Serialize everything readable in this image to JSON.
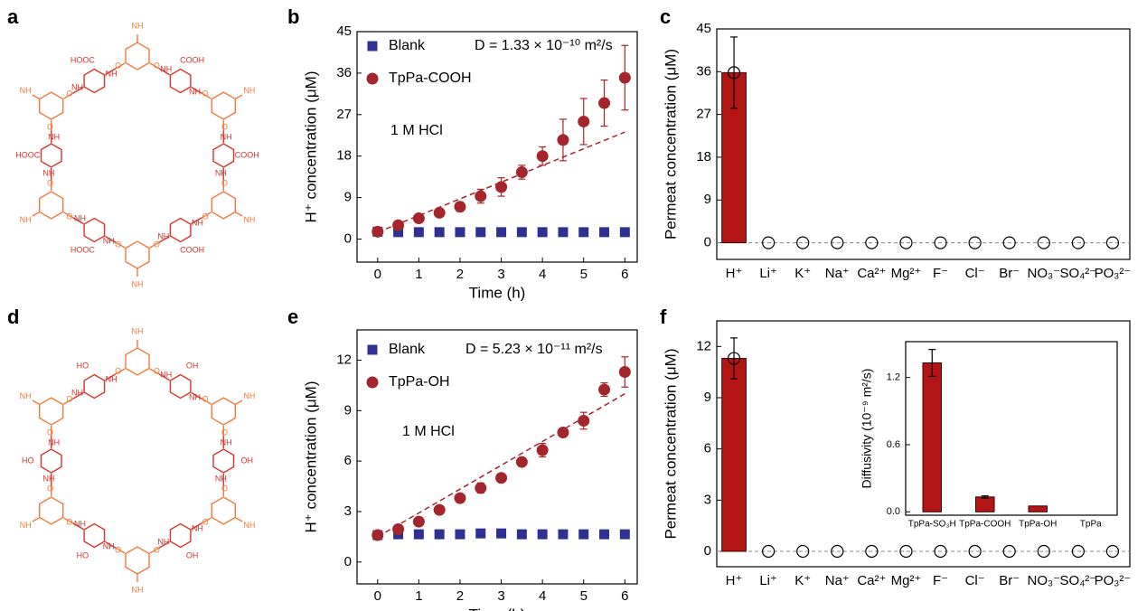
{
  "panel_labels": [
    "a",
    "b",
    "c",
    "d",
    "e",
    "f"
  ],
  "structures": [
    {
      "amine": "NH",
      "oxo": "O",
      "substituent": "COOH",
      "substituent_left": "HOOC"
    },
    {
      "amine": "NH",
      "oxo": "O",
      "substituent": "OH",
      "substituent_left": "HO"
    }
  ],
  "chart_data": [
    {
      "type": "scatter",
      "x_label": "Time (h)",
      "y_label": "H⁺ concentration (μM)",
      "xlim": [
        -0.5,
        6.3
      ],
      "xticks": [
        0,
        1,
        2,
        3,
        4,
        5,
        6
      ],
      "ylim": [
        -5,
        45
      ],
      "yticks": [
        0,
        9,
        18,
        27,
        36,
        45
      ],
      "x": [
        0,
        0.5,
        1,
        1.5,
        2,
        2.5,
        3,
        3.5,
        4,
        4.5,
        5,
        5.5,
        6
      ],
      "series": [
        {
          "name": "Blank",
          "color": "#2e3192",
          "marker": "square",
          "values": [
            1.6,
            1.5,
            1.5,
            1.5,
            1.5,
            1.5,
            1.5,
            1.5,
            1.5,
            1.5,
            1.5,
            1.5,
            1.5
          ]
        },
        {
          "name": "TpPa-COOH",
          "color": "#a4262c",
          "marker": "circle",
          "values": [
            1.6,
            3.0,
            4.5,
            5.7,
            7.0,
            9.3,
            11.3,
            14.5,
            18.0,
            21.5,
            25.5,
            29.5,
            35.0
          ],
          "errors": [
            0.5,
            0.5,
            0.5,
            0.5,
            1.0,
            1.5,
            2.0,
            1.5,
            2.0,
            4.5,
            5.0,
            5.0,
            7.0
          ]
        }
      ],
      "fit": {
        "x": [
          0,
          6
        ],
        "values": [
          1.5,
          23.2
        ],
        "color": "#a4262c"
      },
      "annotations": [
        "D = 1.33 × 10⁻¹⁰ m²/s",
        "1 M HCl"
      ]
    },
    {
      "type": "bar",
      "y_label": "Permeat concentration (μM)",
      "categories": [
        "H⁺",
        "Li⁺",
        "K⁺",
        "Na⁺",
        "Ca²⁺",
        "Mg²⁺",
        "F⁻",
        "Cl⁻",
        "Br⁻",
        "NO₃⁻",
        "SO₄²⁻",
        "PO₃²⁻"
      ],
      "ylim": [
        -3.5,
        45
      ],
      "yticks": [
        0,
        9,
        18,
        27,
        36,
        45
      ],
      "series": [
        {
          "color": "#b31515",
          "values": [
            35.8,
            0,
            0,
            0,
            0,
            0,
            0,
            0,
            0,
            0,
            0,
            0
          ],
          "errors": [
            7.5,
            null,
            null,
            null,
            null,
            null,
            null,
            null,
            null,
            null,
            null,
            null
          ]
        }
      ],
      "value_markers": true,
      "zero_line": true
    },
    {
      "type": "scatter",
      "x_label": "Time (h)",
      "y_label": "H⁺ concentration (μM)",
      "xlim": [
        -0.5,
        6.3
      ],
      "xticks": [
        0,
        1,
        2,
        3,
        4,
        5,
        6
      ],
      "ylim": [
        -1.3,
        13.8
      ],
      "yticks": [
        0,
        3,
        6,
        9,
        12
      ],
      "x": [
        0,
        0.5,
        1,
        1.5,
        2,
        2.5,
        3,
        3.5,
        4,
        4.5,
        5,
        5.5,
        6
      ],
      "series": [
        {
          "name": "Blank",
          "color": "#2e3192",
          "marker": "square",
          "values": [
            1.6,
            1.65,
            1.65,
            1.65,
            1.65,
            1.7,
            1.7,
            1.65,
            1.65,
            1.65,
            1.65,
            1.65,
            1.65
          ]
        },
        {
          "name": "TpPa-OH",
          "color": "#a4262c",
          "marker": "circle",
          "values": [
            1.6,
            1.95,
            2.4,
            3.1,
            3.8,
            4.4,
            5.0,
            5.95,
            6.65,
            7.7,
            8.4,
            10.25,
            11.3
          ],
          "errors": [
            0.1,
            0.1,
            0.1,
            0.2,
            0.15,
            0.3,
            0.15,
            0.1,
            0.4,
            0.1,
            0.5,
            0.4,
            0.9
          ]
        }
      ],
      "fit": {
        "x": [
          0,
          6
        ],
        "values": [
          1.5,
          10.0
        ],
        "color": "#a4262c"
      },
      "annotations": [
        "D = 5.23 × 10⁻¹¹ m²/s",
        "1 M HCl"
      ]
    },
    {
      "type": "bar",
      "y_label": "Permeat concentration (μM)",
      "categories": [
        "H⁺",
        "Li⁺",
        "K⁺",
        "Na⁺",
        "Ca²⁺",
        "Mg²⁺",
        "F⁻",
        "Cl⁻",
        "Br⁻",
        "NO₃⁻",
        "SO₄²⁻",
        "PO₃²⁻"
      ],
      "ylim": [
        -0.9,
        13.5
      ],
      "yticks": [
        0,
        3,
        6,
        9,
        12
      ],
      "series": [
        {
          "color": "#b31515",
          "values": [
            11.3,
            0,
            0,
            0,
            0,
            0,
            0,
            0,
            0,
            0,
            0,
            0
          ],
          "errors": [
            1.2,
            null,
            null,
            null,
            null,
            null,
            null,
            null,
            null,
            null,
            null,
            null
          ]
        }
      ],
      "value_markers": true,
      "zero_line": true
    },
    {
      "type": "bar",
      "y_label": "Diffusivity (10⁻⁹ m²/s)",
      "categories": [
        "TpPa-SO₃H",
        "TpPa-COOH",
        "TpPa-OH",
        "TpPa"
      ],
      "ylim": [
        -0.03,
        1.52
      ],
      "yticks": [
        {
          "value": 0,
          "label": "0.0"
        },
        0.6,
        1.2
      ],
      "series": [
        {
          "color": "#b31515",
          "values": [
            1.33,
            0.133,
            0.0523,
            0
          ],
          "errors": [
            0.12,
            0.01,
            null,
            null
          ]
        }
      ]
    }
  ]
}
